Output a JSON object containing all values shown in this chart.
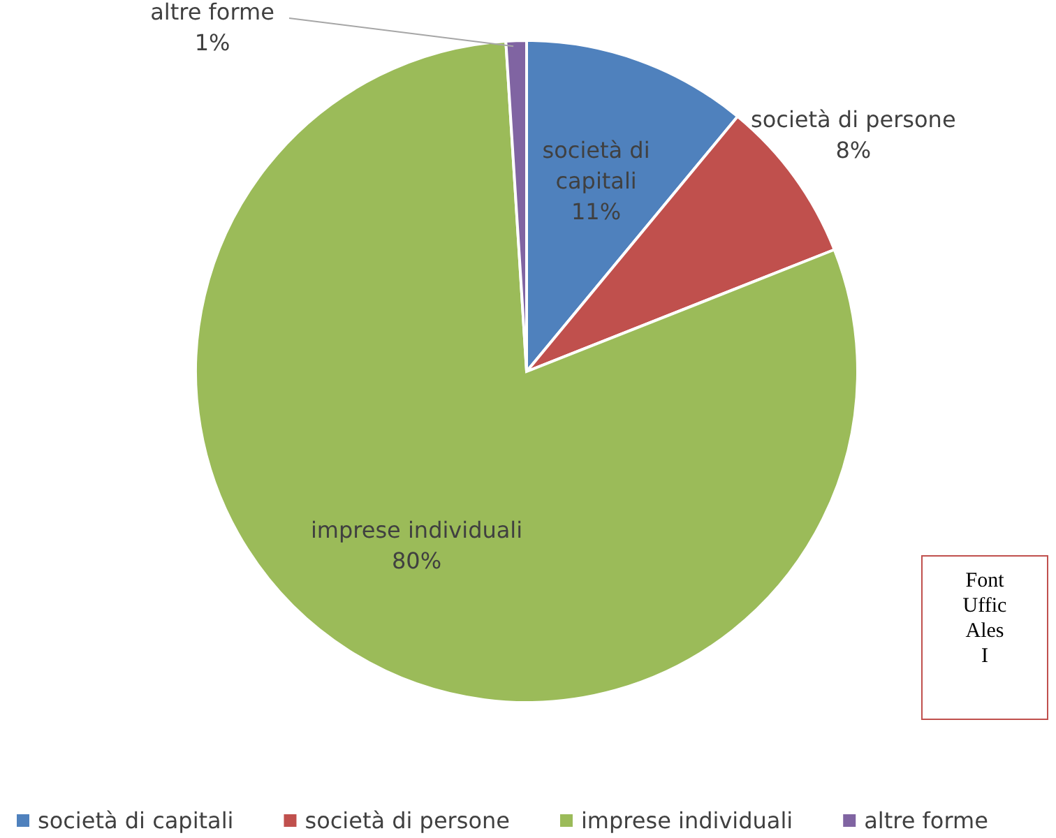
{
  "chart_data": {
    "type": "pie",
    "categories": [
      "società di capitali",
      "società di persone",
      "imprese individuali",
      "altre forme"
    ],
    "values": [
      11,
      8,
      80,
      1
    ],
    "colors": [
      "#4f81bd",
      "#c0504d",
      "#9bbb59",
      "#8064a2"
    ],
    "value_labels": [
      "11%",
      "8%",
      "80%",
      "1%"
    ],
    "legend": "bottom",
    "annotations": [
      "Font\nUffic\nAles\nI"
    ]
  }
}
